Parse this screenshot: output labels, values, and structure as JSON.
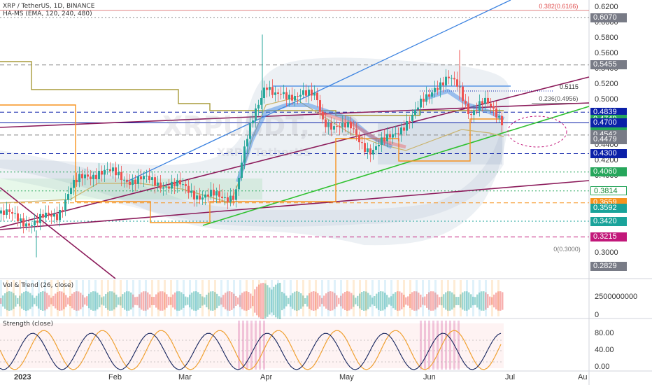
{
  "header": {
    "symbol_line": "XRP / TetherUS, 1D, BINANCE",
    "indicator_line": "HA-MS (EMA, 120, 240, 480)"
  },
  "watermark": {
    "ticker": "XRPUSDT, 1D",
    "name": "XRP / TetherUS"
  },
  "panes": {
    "vol_title": "Vol & Trend (26, close)",
    "strength_title": "Strength (close)"
  },
  "chart_data": {
    "type": "candlestick",
    "price_axis": {
      "range": [
        0.27,
        0.63
      ],
      "ticks": [
        "0.6200",
        "0.6000",
        "0.5800",
        "0.5600",
        "0.5400",
        "0.5200",
        "0.5000",
        "0.4800",
        "0.4600",
        "0.4400",
        "0.4200",
        "0.4000",
        "0.3800",
        "0.3600",
        "0.3400",
        "0.3200",
        "0.3000",
        "0.2800"
      ]
    },
    "x_labels": [
      "2023",
      "Feb",
      "Mar",
      "Apr",
      "May",
      "Jun",
      "Jul",
      "Au"
    ],
    "price_labels": [
      {
        "text": "0.6070",
        "value": 0.607,
        "bg": "#787b86",
        "fg": "#ffffff"
      },
      {
        "text": "0.5455",
        "value": 0.5455,
        "bg": "#787b86",
        "fg": "#ffffff"
      },
      {
        "text": "0.4839",
        "value": 0.4839,
        "bg": "#0a1fa8",
        "fg": "#ffffff"
      },
      {
        "text": "0.4749",
        "value": 0.4749,
        "bg": "#26a65b",
        "fg": "#ffffff"
      },
      {
        "text": "20:09",
        "value": 0.4665,
        "bg": "#26a65b",
        "fg": "#ffffff"
      },
      {
        "text": "0.4700",
        "value": 0.47,
        "bg": "#0a1fa8",
        "fg": "#ffffff"
      },
      {
        "text": "0.4542",
        "value": 0.4542,
        "bg": "#787b86",
        "fg": "#ffffff"
      },
      {
        "text": "0.4479",
        "value": 0.4479,
        "bg": "#787b86",
        "fg": "#ffffff"
      },
      {
        "text": "0.4300",
        "value": 0.43,
        "bg": "#0a1fa8",
        "fg": "#ffffff"
      },
      {
        "text": "0.4060",
        "value": 0.406,
        "bg": "#26a65b",
        "fg": "#ffffff"
      },
      {
        "text": "0.3814",
        "value": 0.3814,
        "bg": "#ffffff",
        "fg": "#1a8a3a",
        "border": "#26a65b"
      },
      {
        "text": "0.3659",
        "value": 0.3659,
        "bg": "#f7931e",
        "fg": "#ffffff"
      },
      {
        "text": "0.3592",
        "value": 0.3592,
        "bg": "#1aa39a",
        "fg": "#ffffff"
      },
      {
        "text": "0.3420",
        "value": 0.342,
        "bg": "#1aa39a",
        "fg": "#ffffff"
      },
      {
        "text": "0.3215",
        "value": 0.3215,
        "bg": "#c2187a",
        "fg": "#ffffff"
      },
      {
        "text": "0.2829",
        "value": 0.2829,
        "bg": "#787b86",
        "fg": "#ffffff"
      }
    ],
    "fib_annotations": [
      {
        "text": "0.382(0.6166)",
        "value": 0.6166,
        "color": "#e05050"
      },
      {
        "text": "0.236(0.4956)",
        "value": 0.4956,
        "color": "#555555"
      },
      {
        "text": "0.5115",
        "value": 0.5115,
        "color": "#333333"
      },
      {
        "text": "0(0.3000)",
        "value": 0.3,
        "color": "#777777"
      }
    ],
    "horizontal_levels": [
      {
        "value": 0.607,
        "color": "#888888",
        "style": "dotted"
      },
      {
        "value": 0.5455,
        "color": "#888888",
        "style": "dashed"
      },
      {
        "value": 0.4839,
        "color": "#0a1fa8",
        "style": "dashed"
      },
      {
        "value": 0.47,
        "color": "#0a1fa8",
        "style": "solid"
      },
      {
        "value": 0.4542,
        "color": "#888888",
        "style": "dashed"
      },
      {
        "value": 0.43,
        "color": "#0a1fa8",
        "style": "dashed"
      },
      {
        "value": 0.406,
        "color": "#26a65b",
        "style": "dotted"
      },
      {
        "value": 0.3814,
        "color": "#26a65b",
        "style": "dotted"
      },
      {
        "value": 0.3659,
        "color": "#f7931e",
        "style": "dashed"
      },
      {
        "value": 0.342,
        "color": "#1aa39a",
        "style": "dotted"
      },
      {
        "value": 0.3215,
        "color": "#c2187a",
        "style": "dashed"
      }
    ],
    "vol_axis_ticks": [
      "2500000000",
      "0"
    ],
    "strength_axis_ticks": [
      "80.00",
      "40.00",
      "0.00"
    ],
    "colors": {
      "up": "#26a69a",
      "down": "#ef5350",
      "trend_green": "#2fc12f",
      "channel_purple": "#8b1a5a",
      "trend_blue": "#3b82e0"
    }
  }
}
